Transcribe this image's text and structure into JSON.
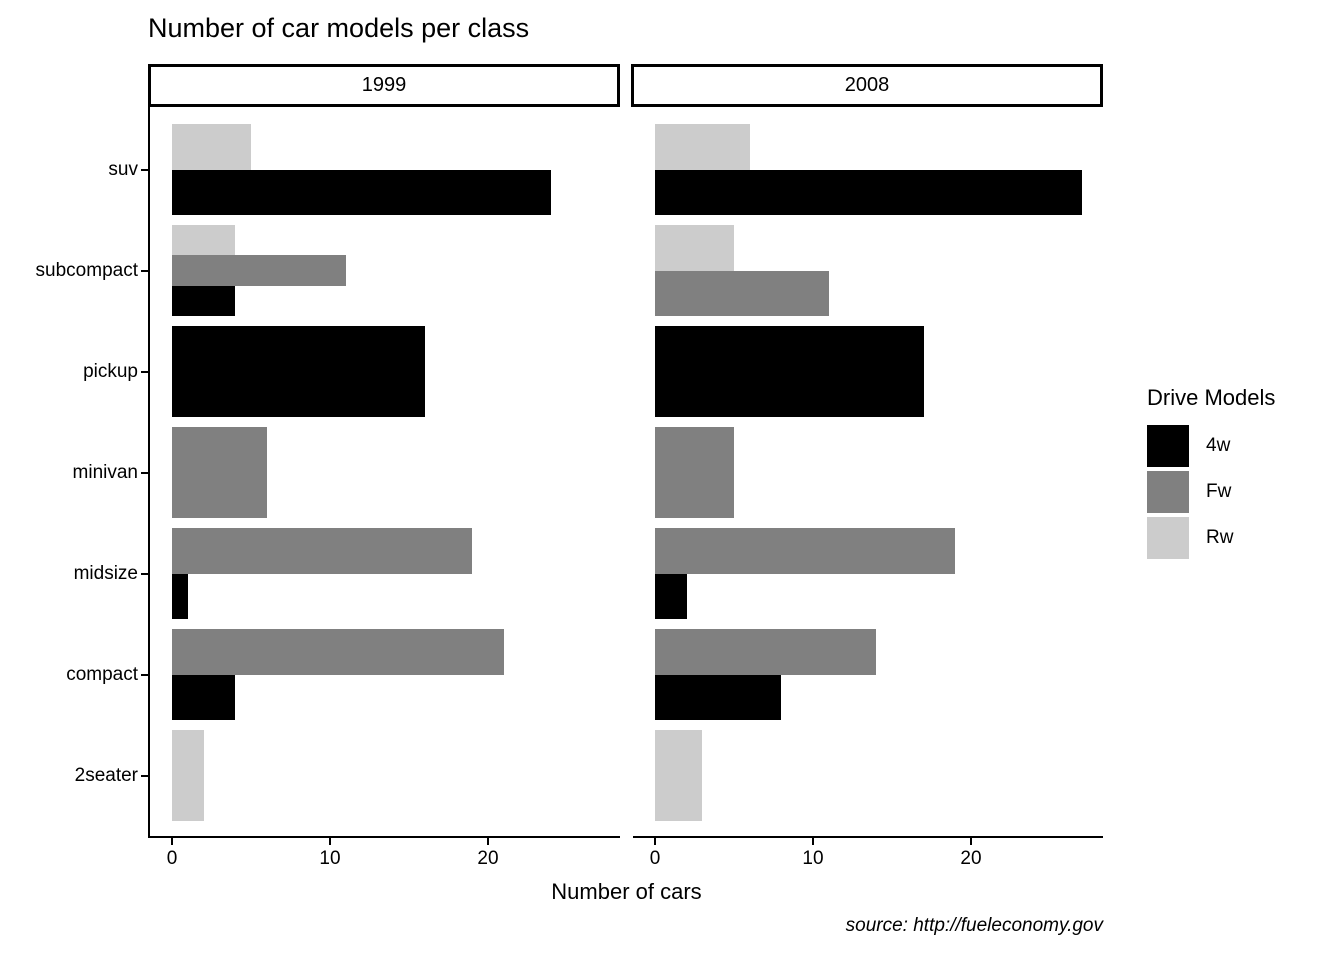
{
  "chart_data": {
    "type": "bar",
    "orientation": "horizontal",
    "title": "Number of car models per class",
    "xlabel": "Number of cars",
    "ylabel": "",
    "caption": "source: http://fueleconomy.gov",
    "grid": false,
    "x_ticks": [
      0,
      10,
      20
    ],
    "xlim": [
      0,
      28
    ],
    "legend": {
      "title": "Drive Models",
      "position": "right",
      "entries": [
        {
          "label": "4w",
          "color": "#000000"
        },
        {
          "label": "Fw",
          "color": "#808080"
        },
        {
          "label": "Rw",
          "color": "#CCCCCC"
        }
      ]
    },
    "categories": [
      "suv",
      "subcompact",
      "pickup",
      "minivan",
      "midsize",
      "compact",
      "2seater"
    ],
    "facets": [
      {
        "label": "1999",
        "bars": {
          "suv": [
            {
              "drv": "Rw",
              "value": 5
            },
            {
              "drv": "4w",
              "value": 24
            }
          ],
          "subcompact": [
            {
              "drv": "Rw",
              "value": 4
            },
            {
              "drv": "Fw",
              "value": 11
            },
            {
              "drv": "4w",
              "value": 4
            }
          ],
          "pickup": [
            {
              "drv": "4w",
              "value": 16
            }
          ],
          "minivan": [
            {
              "drv": "Fw",
              "value": 6
            }
          ],
          "midsize": [
            {
              "drv": "Fw",
              "value": 19
            },
            {
              "drv": "4w",
              "value": 1
            }
          ],
          "compact": [
            {
              "drv": "Fw",
              "value": 21
            },
            {
              "drv": "4w",
              "value": 4
            }
          ],
          "2seater": [
            {
              "drv": "Rw",
              "value": 2
            }
          ]
        }
      },
      {
        "label": "2008",
        "bars": {
          "suv": [
            {
              "drv": "Rw",
              "value": 6
            },
            {
              "drv": "4w",
              "value": 27
            }
          ],
          "subcompact": [
            {
              "drv": "Rw",
              "value": 5
            },
            {
              "drv": "Fw",
              "value": 11
            }
          ],
          "pickup": [
            {
              "drv": "4w",
              "value": 17
            }
          ],
          "minivan": [
            {
              "drv": "Fw",
              "value": 5
            }
          ],
          "midsize": [
            {
              "drv": "Fw",
              "value": 19
            },
            {
              "drv": "4w",
              "value": 2
            }
          ],
          "compact": [
            {
              "drv": "Fw",
              "value": 14
            },
            {
              "drv": "4w",
              "value": 8
            }
          ],
          "2seater": [
            {
              "drv": "Rw",
              "value": 3
            }
          ]
        }
      }
    ]
  }
}
